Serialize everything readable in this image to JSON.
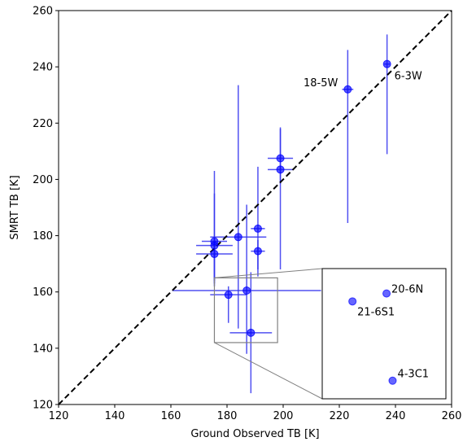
{
  "chart_data": {
    "type": "scatter",
    "title": "",
    "xlabel": "Ground Observed TB [K]",
    "ylabel": "SMRT TB [K]",
    "xlim": [
      120,
      260
    ],
    "ylim": [
      120,
      260
    ],
    "xticks": [
      120,
      140,
      160,
      180,
      200,
      220,
      240,
      260
    ],
    "yticks": [
      120,
      140,
      160,
      180,
      200,
      220,
      240,
      260
    ],
    "grid": false,
    "legend": "none",
    "colors": {
      "point": "#0000ff",
      "errorbar": "#3333ee",
      "reference_line": "#000000",
      "inset_frame": "#808080"
    },
    "reference_line": {
      "style": "dashed",
      "from": [
        120,
        120
      ],
      "to": [
        260,
        260
      ]
    },
    "points": [
      {
        "x": 237.0,
        "y": 241.0,
        "xerr": 1.0,
        "yerr_low": 32.0,
        "yerr_high": 10.5,
        "label": "6-3W"
      },
      {
        "x": 223.0,
        "y": 232.0,
        "xerr": 2.0,
        "yerr_low": 47.5,
        "yerr_high": 14.0,
        "label": "18-5W"
      },
      {
        "x": 199.0,
        "y": 207.5,
        "xerr": 4.5,
        "yerr_low": 9.0,
        "yerr_high": 11.0,
        "label": ""
      },
      {
        "x": 199.0,
        "y": 203.5,
        "xerr": 4.5,
        "yerr_low": 35.5,
        "yerr_high": 14.5,
        "label": ""
      },
      {
        "x": 191.0,
        "y": 182.5,
        "xerr": 2.5,
        "yerr_low": 14.5,
        "yerr_high": 22.0,
        "label": ""
      },
      {
        "x": 191.0,
        "y": 174.5,
        "xerr": 2.5,
        "yerr_low": 9.0,
        "yerr_high": 4.0,
        "label": ""
      },
      {
        "x": 184.0,
        "y": 179.5,
        "xerr": 10.0,
        "yerr_low": 32.5,
        "yerr_high": 54.0,
        "label": ""
      },
      {
        "x": 175.5,
        "y": 178.0,
        "xerr": 4.5,
        "yerr_low": 16.0,
        "yerr_high": 17.0,
        "label": ""
      },
      {
        "x": 175.5,
        "y": 176.5,
        "xerr": 6.5,
        "yerr_low": 12.5,
        "yerr_high": 26.5,
        "label": ""
      },
      {
        "x": 175.5,
        "y": 173.5,
        "xerr": 6.5,
        "yerr_low": 10.5,
        "yerr_high": 4.5,
        "label": ""
      },
      {
        "x": 180.5,
        "y": 159.0,
        "xerr": 6.5,
        "yerr_low": 10.0,
        "yerr_high": 3.0,
        "label": ""
      },
      {
        "x": 187.0,
        "y": 160.5,
        "xerr": 26.5,
        "yerr_low": 22.5,
        "yerr_high": 30.5,
        "label": ""
      },
      {
        "x": 188.5,
        "y": 145.5,
        "xerr": 7.5,
        "yerr_low": 21.5,
        "yerr_high": 21.5,
        "label": ""
      }
    ],
    "inset": {
      "source_xlim": [
        175.5,
        198.0
      ],
      "source_ylim": [
        142.0,
        165.0
      ],
      "position": "lower-right",
      "points": [
        {
          "x": 187.2,
          "y": 160.6,
          "label": "20-6N"
        },
        {
          "x": 181.0,
          "y": 159.2,
          "label": "21-6S1"
        },
        {
          "x": 188.3,
          "y": 145.2,
          "label": "4-3C1"
        }
      ]
    }
  }
}
